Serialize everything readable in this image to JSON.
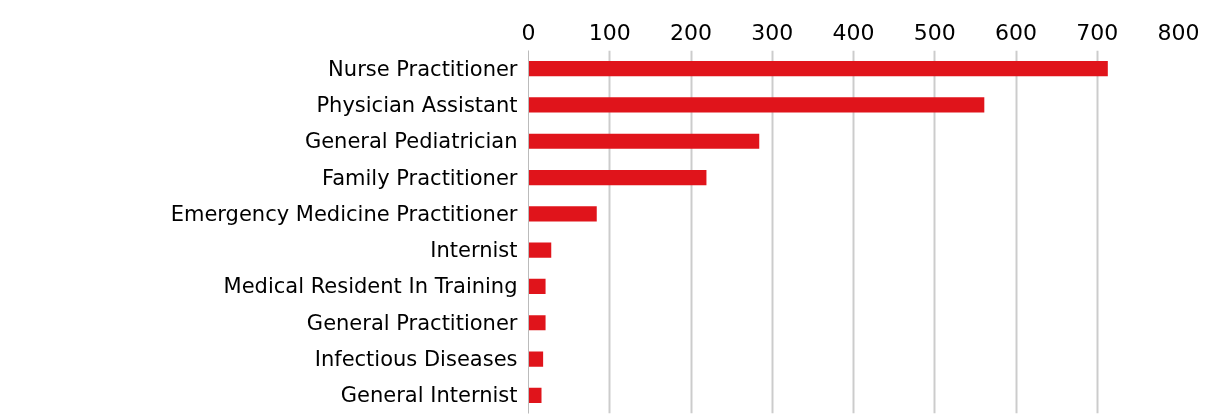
{
  "chart_data": {
    "type": "bar",
    "orientation": "horizontal",
    "categories": [
      "Nurse Practitioner",
      "Physician Assistant",
      "General Pediatrician",
      "Family Practitioner",
      "Emergency Medicine Practitioner",
      "Internist",
      "Medical Resident In Training",
      "General Practitioner",
      "Infectious Diseases",
      "General Internist"
    ],
    "values": [
      713,
      561,
      284,
      219,
      84,
      28,
      21,
      21,
      18,
      16
    ],
    "color": "#e0141b",
    "xlim": [
      0,
      800
    ],
    "xticks": [
      0,
      100,
      200,
      300,
      400,
      500,
      600,
      700,
      800
    ],
    "grid": "x"
  }
}
